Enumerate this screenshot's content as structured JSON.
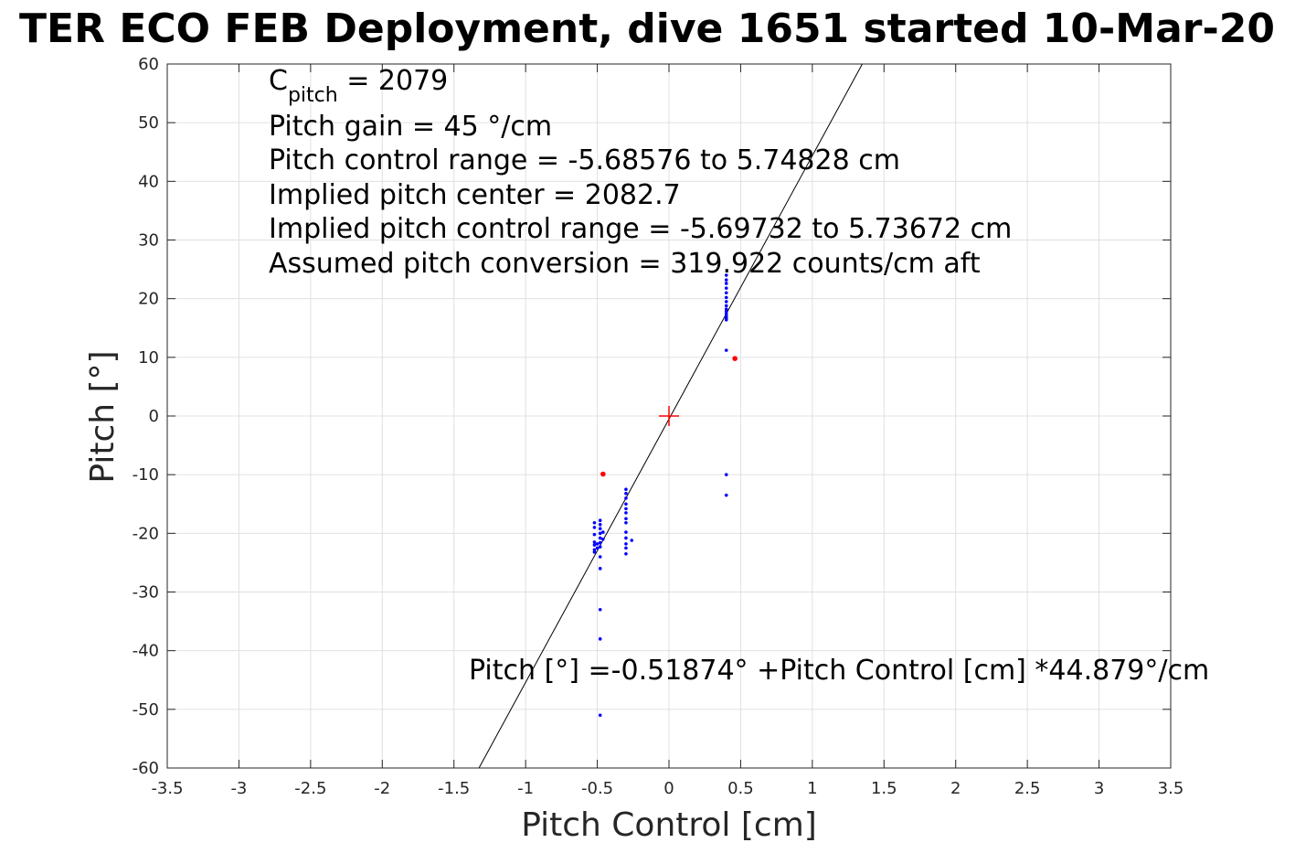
{
  "chart_data": {
    "type": "scatter",
    "title": "TER ECO FEB Deployment, dive 1651 started 10-Mar-20",
    "xlabel": "Pitch Control [cm]",
    "ylabel": "Pitch [°]",
    "xlim": [
      -3.5,
      3.5
    ],
    "ylim": [
      -60,
      60
    ],
    "xticks": [
      -3.5,
      -3,
      -2.5,
      -2,
      -1.5,
      -1,
      -0.5,
      0,
      0.5,
      1,
      1.5,
      2,
      2.5,
      3,
      3.5
    ],
    "xtick_labels": [
      "-3.5",
      "-3",
      "-2.5",
      "-2",
      "-1.5",
      "-1",
      "-0.5",
      "0",
      "0.5",
      "1",
      "1.5",
      "2",
      "2.5",
      "3",
      "3.5"
    ],
    "yticks": [
      60,
      50,
      40,
      30,
      20,
      10,
      0,
      -10,
      -20,
      -30,
      -40,
      -50,
      -60
    ],
    "ytick_labels": [
      "60",
      "50",
      "40",
      "30",
      "20",
      "10",
      "0",
      "-10",
      "-20",
      "-30",
      "-40",
      "-50",
      "-60"
    ],
    "grid": true,
    "colors": {
      "points": "#0000ff",
      "outliers": "#ff0000",
      "center_marker": "#ff0000",
      "fit_line": "#000000",
      "grid": "#e0e0e0",
      "axes": "#262626"
    },
    "annotations": {
      "c_pitch_main": "C",
      "c_pitch_sub": "pitch",
      "c_pitch_value": " = 2079",
      "lines": [
        "Pitch gain = 45 °/cm",
        "Pitch control range = -5.68576 to 5.74828 cm",
        "Implied pitch center = 2082.7",
        "Implied pitch control range = -5.69732 to 5.73672 cm",
        "Assumed pitch conversion = 319.922 counts/cm aft"
      ],
      "fit_equation": "Pitch [°] =-0.51874° +Pitch Control [cm] *44.879°/cm"
    },
    "fit_line": {
      "intercept": -0.51874,
      "slope": 44.879
    },
    "center_marker": {
      "x": 0,
      "y": 0
    },
    "series": [
      {
        "points": [
          [
            0.4,
            24
          ],
          [
            0.4,
            23.2
          ],
          [
            0.4,
            22.6
          ],
          [
            0.4,
            21.8
          ],
          [
            0.4,
            21.0
          ],
          [
            0.4,
            20.2
          ],
          [
            0.4,
            19.5
          ],
          [
            0.4,
            18.8
          ],
          [
            0.4,
            18.2
          ],
          [
            0.4,
            17.8
          ],
          [
            0.4,
            17.4
          ],
          [
            0.4,
            17.0
          ],
          [
            0.4,
            16.7
          ],
          [
            0.4,
            16.4
          ],
          [
            0.4,
            11.2
          ],
          [
            0.4,
            -10
          ],
          [
            0.4,
            -13.5
          ],
          [
            -0.3,
            -12.5
          ],
          [
            -0.3,
            -13.2
          ],
          [
            -0.3,
            -14.0
          ],
          [
            -0.3,
            -15.0
          ],
          [
            -0.3,
            -15.8
          ],
          [
            -0.3,
            -16.5
          ],
          [
            -0.3,
            -17.5
          ],
          [
            -0.3,
            -18.2
          ],
          [
            -0.3,
            -19.8
          ],
          [
            -0.3,
            -20.8
          ],
          [
            -0.3,
            -21.8
          ],
          [
            -0.3,
            -22.5
          ],
          [
            -0.3,
            -23.5
          ],
          [
            -0.26,
            -21.2
          ],
          [
            -0.52,
            -18.2
          ],
          [
            -0.52,
            -19.0
          ],
          [
            -0.52,
            -20.2
          ],
          [
            -0.52,
            -21.5
          ],
          [
            -0.52,
            -22.0
          ],
          [
            -0.52,
            -22.8
          ],
          [
            -0.52,
            -23.2
          ],
          [
            -0.5,
            -22.5
          ],
          [
            -0.5,
            -21.8
          ],
          [
            -0.48,
            -17.8
          ],
          [
            -0.48,
            -18.5
          ],
          [
            -0.48,
            -19.2
          ],
          [
            -0.48,
            -20.0
          ],
          [
            -0.48,
            -20.8
          ],
          [
            -0.48,
            -21.6
          ],
          [
            -0.48,
            -22.3
          ],
          [
            -0.48,
            -24.0
          ],
          [
            -0.48,
            -26.0
          ],
          [
            -0.48,
            -33.0
          ],
          [
            -0.48,
            -38.0
          ],
          [
            -0.48,
            -51.0
          ],
          [
            -0.46,
            -19.8
          ],
          [
            -0.46,
            -21.0
          ]
        ]
      },
      {
        "points": [
          [
            0.46,
            9.8
          ],
          [
            -0.46,
            -9.9
          ]
        ]
      }
    ]
  }
}
